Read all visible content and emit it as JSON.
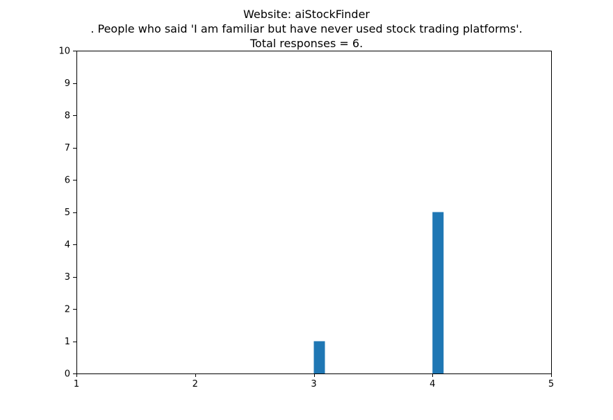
{
  "chart_data": {
    "type": "bar",
    "title_lines": [
      "Website: aiStockFinder",
      ". People who said 'I am familiar but have never used stock trading platforms'.",
      "Total responses = 6."
    ],
    "xlim": [
      1,
      5
    ],
    "ylim": [
      0,
      10
    ],
    "xticks": [
      1,
      2,
      3,
      4,
      5
    ],
    "yticks": [
      0,
      1,
      2,
      3,
      4,
      5,
      6,
      7,
      8,
      9,
      10
    ],
    "bars": [
      {
        "x": 3,
        "value": 1
      },
      {
        "x": 4,
        "value": 5
      }
    ],
    "bar_color": "#1f77b4",
    "grid": false
  }
}
